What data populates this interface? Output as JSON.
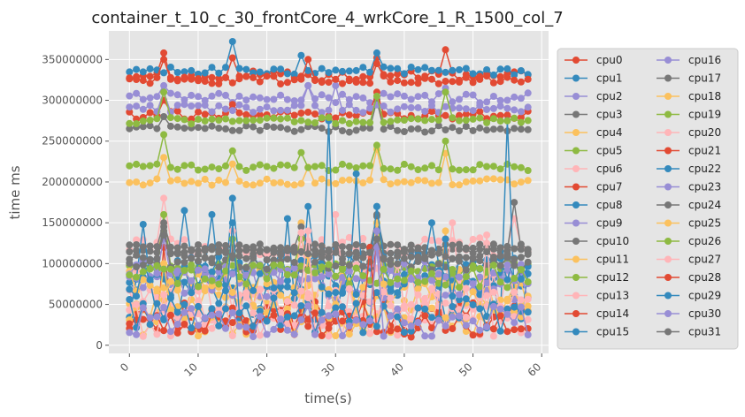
{
  "chart_data": {
    "type": "line",
    "title": "container_t_10_c_30_frontCore_4_wrkCore_1_R_1500_col_7",
    "xlabel": "time(s)",
    "ylabel": "time ms",
    "xlim": [
      -3,
      61
    ],
    "ylim": [
      -10000000,
      385000000
    ],
    "x_ticks": [
      0,
      10,
      20,
      30,
      40,
      50,
      60
    ],
    "y_ticks": [
      0,
      50000000,
      100000000,
      150000000,
      200000000,
      250000000,
      300000000,
      350000000
    ],
    "x_tick_labels": [
      "0",
      "10",
      "20",
      "30",
      "40",
      "50",
      "60"
    ],
    "y_tick_labels": [
      "0",
      "50000000",
      "100000000",
      "150000000",
      "200000000",
      "250000000",
      "300000000",
      "350000000"
    ],
    "grid": true,
    "legend_position": "right, two columns",
    "x": [
      0,
      1,
      2,
      3,
      4,
      5,
      6,
      7,
      8,
      9,
      10,
      11,
      12,
      13,
      14,
      15,
      16,
      17,
      18,
      19,
      20,
      21,
      22,
      23,
      24,
      25,
      26,
      27,
      28,
      29,
      30,
      31,
      32,
      33,
      34,
      35,
      36,
      37,
      38,
      39,
      40,
      41,
      42,
      43,
      44,
      45,
      46,
      47,
      48,
      49,
      50,
      51,
      52,
      53,
      54,
      55,
      56,
      57,
      58
    ],
    "series": [
      {
        "name": "cpu0",
        "color": "#E24A33",
        "base": 330000000,
        "amp": 6000000,
        "spikes": {
          "5": 358000000,
          "15": 352000000,
          "36": 352000000,
          "46": 362000000
        }
      },
      {
        "name": "cpu1",
        "color": "#348ABD",
        "base": 336000000,
        "amp": 5000000,
        "spikes": {
          "15": 372000000,
          "25": 355000000,
          "36": 358000000
        }
      },
      {
        "name": "cpu2",
        "color": "#988ED5",
        "base": 303000000,
        "amp": 6000000,
        "spikes": {
          "5": 318000000,
          "26": 318000000,
          "46": 315000000
        }
      },
      {
        "name": "cpu3",
        "color": "#777777",
        "base": 265000000,
        "amp": 4000000,
        "spikes": {
          "5": 280000000,
          "36": 300000000
        }
      },
      {
        "name": "cpu4",
        "color": "#FBC15E",
        "base": 200000000,
        "amp": 4000000,
        "spikes": {
          "5": 230000000,
          "15": 222000000,
          "26": 218000000,
          "36": 240000000,
          "46": 235000000
        }
      },
      {
        "name": "cpu5",
        "color": "#8EBA42",
        "base": 218000000,
        "amp": 4000000,
        "spikes": {
          "5": 258000000,
          "15": 238000000,
          "25": 236000000,
          "36": 245000000,
          "46": 250000000
        }
      },
      {
        "name": "cpu6",
        "color": "#FFB5B8",
        "base": 120000000,
        "amp": 12000000,
        "spikes": {
          "5": 180000000,
          "36": 150000000,
          "56": 155000000
        }
      },
      {
        "name": "cpu7",
        "color": "#E24A33",
        "base": 282000000,
        "amp": 5000000,
        "spikes": {
          "5": 300000000,
          "15": 295000000,
          "36": 310000000
        }
      },
      {
        "name": "cpu8",
        "color": "#348ABD",
        "base": 90000000,
        "amp": 25000000,
        "spikes": {
          "8": 165000000,
          "12": 160000000,
          "15": 180000000,
          "26": 170000000,
          "36": 170000000
        }
      },
      {
        "name": "cpu9",
        "color": "#988ED5",
        "base": 290000000,
        "amp": 5000000,
        "spikes": {
          "5": 310000000,
          "26": 318000000,
          "30": 318000000
        }
      },
      {
        "name": "cpu10",
        "color": "#777777",
        "base": 115000000,
        "amp": 3000000,
        "spikes": {
          "5": 140000000,
          "36": 160000000,
          "56": 175000000
        }
      },
      {
        "name": "cpu11",
        "color": "#FBC15E",
        "base": 55000000,
        "amp": 25000000,
        "spikes": {
          "25": 150000000,
          "46": 140000000
        }
      },
      {
        "name": "cpu12",
        "color": "#8EBA42",
        "base": 95000000,
        "amp": 6000000,
        "spikes": {
          "5": 160000000,
          "25": 130000000,
          "36": 150000000
        }
      },
      {
        "name": "cpu13",
        "color": "#FFB5B8",
        "base": 70000000,
        "amp": 30000000,
        "spikes": {
          "30": 160000000,
          "47": 150000000
        }
      },
      {
        "name": "cpu14",
        "color": "#E24A33",
        "base": 35000000,
        "amp": 20000000,
        "spikes": {
          "5": 120000000,
          "36": 140000000,
          "46": 130000000
        }
      },
      {
        "name": "cpu15",
        "color": "#348ABD",
        "base": 60000000,
        "amp": 30000000,
        "spikes": {
          "2": 148000000,
          "23": 155000000,
          "29": 275000000,
          "33": 210000000,
          "55": 275000000
        }
      },
      {
        "name": "cpu16",
        "color": "#988ED5",
        "base": 75000000,
        "amp": 20000000,
        "spikes": {
          "36": 130000000
        }
      },
      {
        "name": "cpu17",
        "color": "#777777",
        "base": 120000000,
        "amp": 4000000,
        "spikes": {
          "5": 150000000,
          "25": 145000000,
          "36": 158000000
        }
      },
      {
        "name": "cpu18",
        "color": "#FBC15E",
        "base": 70000000,
        "amp": 25000000,
        "spikes": {
          "36": 150000000
        }
      },
      {
        "name": "cpu19",
        "color": "#8EBA42",
        "base": 275000000,
        "amp": 4000000,
        "spikes": {
          "5": 310000000,
          "36": 305000000,
          "46": 310000000
        }
      },
      {
        "name": "cpu20",
        "color": "#FFB5B8",
        "base": 45000000,
        "amp": 25000000,
        "spikes": {
          "15": 140000000,
          "25": 138000000
        }
      },
      {
        "name": "cpu21",
        "color": "#E24A33",
        "base": 325000000,
        "amp": 5000000,
        "spikes": {
          "5": 350000000,
          "26": 350000000,
          "36": 345000000
        }
      },
      {
        "name": "cpu22",
        "color": "#348ABD",
        "base": 85000000,
        "amp": 25000000,
        "spikes": {
          "36": 170000000,
          "44": 150000000
        }
      },
      {
        "name": "cpu23",
        "color": "#988ED5",
        "base": 90000000,
        "amp": 15000000,
        "spikes": {
          "5": 130000000,
          "36": 140000000
        }
      },
      {
        "name": "cpu24",
        "color": "#777777",
        "base": 100000000,
        "amp": 8000000,
        "spikes": {
          "5": 145000000,
          "36": 130000000
        }
      },
      {
        "name": "cpu25",
        "color": "#FBC15E",
        "base": 30000000,
        "amp": 20000000,
        "spikes": {
          "5": 100000000,
          "26": 110000000
        }
      },
      {
        "name": "cpu26",
        "color": "#8EBA42",
        "base": 85000000,
        "amp": 15000000,
        "spikes": {
          "15": 130000000
        }
      },
      {
        "name": "cpu27",
        "color": "#FFB5B8",
        "base": 40000000,
        "amp": 30000000,
        "spikes": {
          "26": 140000000,
          "52": 135000000
        }
      },
      {
        "name": "cpu28",
        "color": "#E24A33",
        "base": 25000000,
        "amp": 15000000,
        "spikes": {
          "35": 120000000
        }
      },
      {
        "name": "cpu29",
        "color": "#348ABD",
        "base": 40000000,
        "amp": 25000000,
        "spikes": {
          "15": 150000000,
          "46": 130000000
        }
      },
      {
        "name": "cpu30",
        "color": "#988ED5",
        "base": 30000000,
        "amp": 20000000,
        "spikes": {
          "36": 120000000
        }
      },
      {
        "name": "cpu31",
        "color": "#777777",
        "base": 110000000,
        "amp": 6000000,
        "spikes": {
          "5": 135000000,
          "36": 130000000
        }
      }
    ]
  }
}
